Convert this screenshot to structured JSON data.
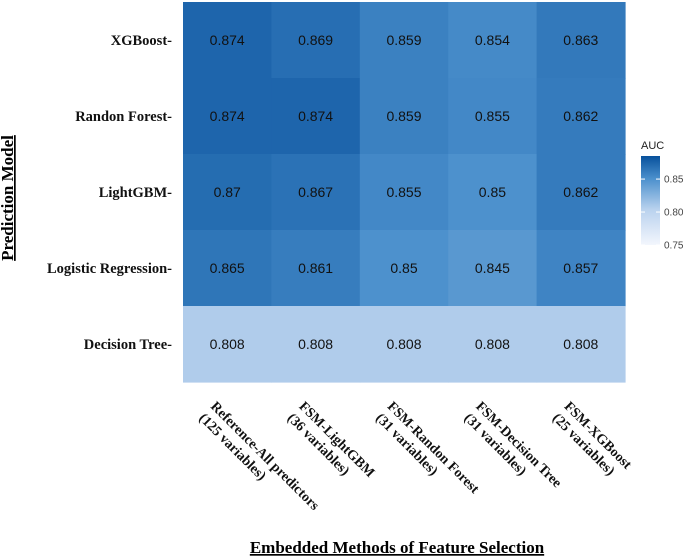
{
  "chart_data": {
    "type": "heatmap",
    "xlabel": "Embedded Methods of Feature Selection",
    "ylabel": "Prediction Model",
    "x_categories": [
      [
        "Reference-All predictors",
        "(125 variables)"
      ],
      [
        "FSM-LightGBM",
        "(36 variables)"
      ],
      [
        "FSM-Randon Forest",
        "(31 variables)"
      ],
      [
        "FSM-Decision Tree",
        "(31 variables)"
      ],
      [
        "FSM-XGBoost",
        "(25 variables)"
      ]
    ],
    "y_categories": [
      "XGBoost-",
      "Randon Forest-",
      "LightGBM-",
      "Logistic Regression-",
      "Decision Tree-"
    ],
    "cell_labels": [
      [
        "0.874",
        "0.869",
        "0.859",
        "0.854",
        "0.863"
      ],
      [
        "0.874",
        "0.874",
        "0.859",
        "0.855",
        "0.862"
      ],
      [
        "0.87",
        "0.867",
        "0.855",
        "0.85",
        "0.862"
      ],
      [
        "0.865",
        "0.861",
        "0.85",
        "0.845",
        "0.857"
      ],
      [
        "0.808",
        "0.808",
        "0.808",
        "0.808",
        "0.808"
      ]
    ],
    "values": [
      [
        0.874,
        0.869,
        0.859,
        0.854,
        0.863
      ],
      [
        0.874,
        0.874,
        0.859,
        0.855,
        0.862
      ],
      [
        0.87,
        0.867,
        0.855,
        0.85,
        0.862
      ],
      [
        0.865,
        0.861,
        0.85,
        0.845,
        0.857
      ],
      [
        0.808,
        0.808,
        0.808,
        0.808,
        0.808
      ]
    ],
    "legend": {
      "title": "AUC",
      "placement": "right",
      "ticks": [
        "0.85",
        "0.80",
        "0.75"
      ],
      "tick_values": [
        0.85,
        0.8,
        0.75
      ],
      "range": [
        0.75,
        0.885
      ],
      "color_low": "#f3f6fd",
      "color_high": "#08519c"
    }
  }
}
